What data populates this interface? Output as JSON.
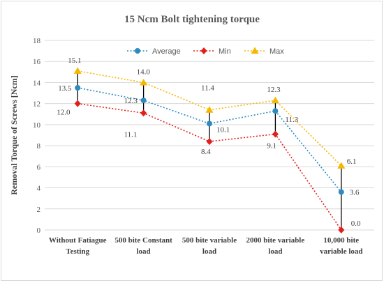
{
  "chart_data": {
    "type": "line",
    "title": "15 Ncm Bolt tightening torque",
    "xlabel": "",
    "ylabel": "Removal Torque of  Screws [Ncm]",
    "ylim": [
      0,
      18
    ],
    "yticks": [
      "0",
      "2",
      "4",
      "6",
      "8",
      "10",
      "12",
      "14",
      "16",
      "18"
    ],
    "categories": [
      [
        "Without Fatiague",
        "Testing"
      ],
      [
        "500 bite Constant",
        "load"
      ],
      [
        "500 bite variable",
        "load"
      ],
      [
        "2000 bite variable",
        "load"
      ],
      [
        "10,000 bite",
        "variable load"
      ]
    ],
    "series": [
      {
        "name": "Average",
        "values": [
          13.5,
          12.3,
          10.1,
          11.3,
          3.6
        ],
        "labels": [
          "13.5",
          "12.3",
          "10.1",
          "11.3",
          "3.6"
        ],
        "color": "#2e8bc0",
        "marker": "circle"
      },
      {
        "name": "Min",
        "values": [
          12.0,
          11.1,
          8.4,
          9.1,
          0.0
        ],
        "labels": [
          "12.0",
          "11.1",
          "8.4",
          "9.1",
          "0.0"
        ],
        "color": "#e0201b",
        "marker": "diamond"
      },
      {
        "name": "Max",
        "values": [
          15.1,
          14.0,
          11.4,
          12.3,
          6.1
        ],
        "labels": [
          "15.1",
          "14.0",
          "11.4",
          "12.3",
          "6.1"
        ],
        "color": "#f5b800",
        "marker": "triangle"
      }
    ],
    "error_bars": "min-max vertical black lines",
    "grid": "horizontal",
    "legend": "top-right"
  }
}
